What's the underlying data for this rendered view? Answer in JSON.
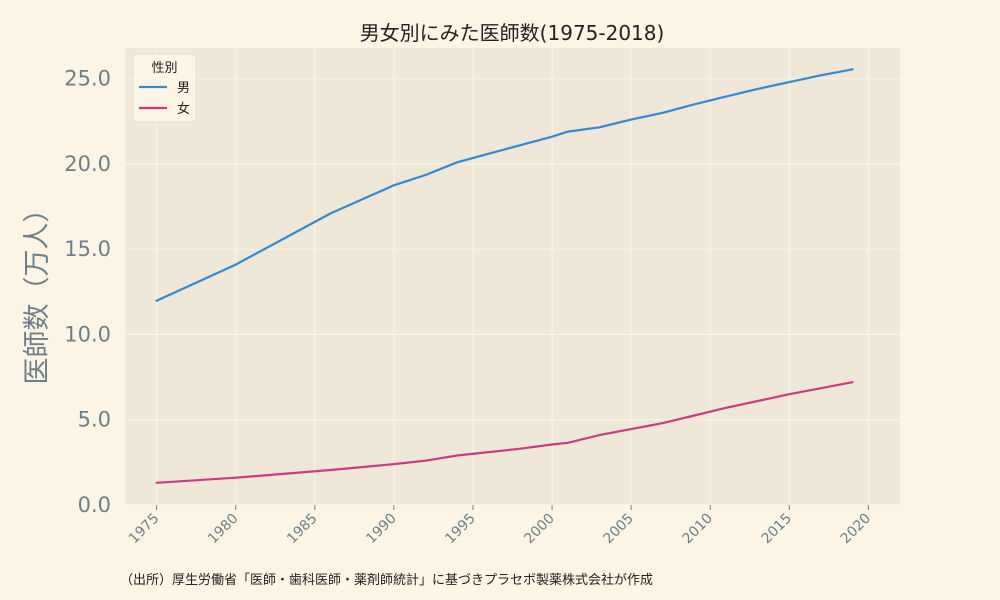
{
  "chart_data": {
    "type": "line",
    "title": "男女別にみた医師数(1975-2018)",
    "xlabel": "",
    "ylabel": "医師数（万人）",
    "xlim": [
      1973,
      2022
    ],
    "ylim": [
      0,
      26.8
    ],
    "yticks": [
      0,
      5,
      10,
      15,
      20,
      25
    ],
    "ytick_labels": [
      "0.0",
      "5.0",
      "10.0",
      "15.0",
      "20.0",
      "25.0"
    ],
    "xticks": [
      1975,
      1980,
      1985,
      1990,
      1995,
      2000,
      2005,
      2010,
      2015,
      2020
    ],
    "xtick_labels": [
      "1975",
      "1980",
      "1985",
      "1990",
      "1995",
      "2000",
      "2005",
      "2010",
      "2015",
      "2020"
    ],
    "grid": true,
    "legend": {
      "title": "性別",
      "placement": "top-left"
    },
    "series": [
      {
        "name": "男",
        "color": "#348ad1",
        "x": [
          1975,
          1980,
          1986,
          1990,
          1992,
          1994,
          1996,
          1998,
          2000,
          2001,
          2003,
          2005,
          2007,
          2009,
          2011,
          2013,
          2015,
          2017,
          2019
        ],
        "y": [
          11.98,
          14.1,
          17.1,
          18.75,
          19.35,
          20.1,
          20.6,
          21.1,
          21.6,
          21.9,
          22.15,
          22.6,
          23.0,
          23.5,
          23.95,
          24.4,
          24.8,
          25.2,
          25.55
        ]
      },
      {
        "name": "女",
        "color": "#cc3a82",
        "x": [
          1975,
          1980,
          1986,
          1990,
          1992,
          1994,
          1996,
          1998,
          2000,
          2001,
          2003,
          2005,
          2007,
          2009,
          2011,
          2013,
          2015,
          2017,
          2019
        ],
        "y": [
          1.3,
          1.6,
          2.05,
          2.4,
          2.6,
          2.9,
          3.1,
          3.3,
          3.55,
          3.65,
          4.1,
          4.45,
          4.8,
          5.25,
          5.7,
          6.1,
          6.5,
          6.85,
          7.2
        ]
      }
    ]
  },
  "footer": {
    "source": "（出所）厚生労働省「医師・歯科医師・薬剤師統計」に基づきプラセボ製薬株式会社が作成"
  },
  "colors": {
    "background": "#fcf5e5",
    "plot_area": "#efe7d7",
    "grid": "#fbf6ec",
    "tick_text": "#6e7f88"
  }
}
